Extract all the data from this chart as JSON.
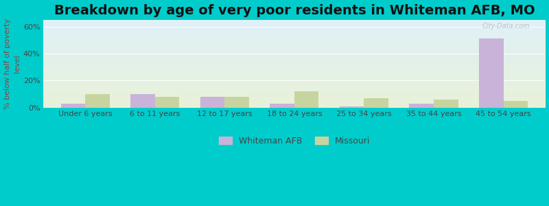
{
  "title": "Breakdown by age of very poor residents in Whiteman AFB, MO",
  "categories": [
    "Under 6 years",
    "6 to 11 years",
    "12 to 17 years",
    "18 to 24 years",
    "25 to 34 years",
    "35 to 44 years",
    "45 to 54 years"
  ],
  "whiteman_afb": [
    3.0,
    10.0,
    8.0,
    3.0,
    1.0,
    3.0,
    51.0
  ],
  "missouri": [
    10.0,
    8.0,
    8.0,
    12.0,
    7.0,
    6.0,
    5.0
  ],
  "whiteman_color": "#c9b3d9",
  "missouri_color": "#c8d4a0",
  "bg_top_color": "#e0f0f8",
  "bg_bottom_color": "#e8f2d8",
  "outer_bg": "#00cccc",
  "ylabel": "% below half of poverty\nlevel",
  "yticks": [
    0,
    20,
    40,
    60
  ],
  "ytick_labels": [
    "0%",
    "20%",
    "40%",
    "60%"
  ],
  "ylim": [
    0,
    65
  ],
  "bar_width": 0.35,
  "legend_whiteman": "Whiteman AFB",
  "legend_missouri": "Missouri",
  "title_fontsize": 14,
  "tick_fontsize": 8,
  "ylabel_fontsize": 8
}
